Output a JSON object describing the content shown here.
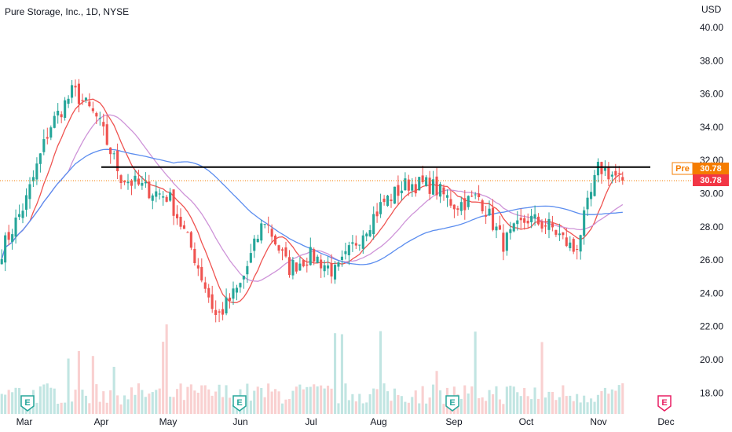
{
  "header": {
    "title": "Pure Storage, Inc., 1D, NYSE",
    "currency": "USD"
  },
  "price_tags": {
    "pre_label": "Pre",
    "pre_value": "30.78",
    "last_value": "30.78",
    "pre_color": "#f57c00",
    "last_color": "#f23645"
  },
  "chart_data": {
    "type": "candlestick",
    "title": "Pure Storage, Inc., 1D, NYSE",
    "y_axis_label": "USD",
    "y_ticks": [
      "40.00",
      "38.00",
      "36.00",
      "34.00",
      "32.00",
      "30.00",
      "28.00",
      "26.00",
      "24.00",
      "22.00",
      "20.00",
      "18.00"
    ],
    "ylim": [
      17.5,
      41
    ],
    "x_ticks": [
      "Mar",
      "Apr",
      "May",
      "Jun",
      "Jul",
      "Aug",
      "Sep",
      "Oct",
      "Nov",
      "Dec"
    ],
    "close_series": [
      {
        "date": "Mar",
        "close": 26.6
      },
      {
        "date": "Mar mid",
        "close": 29.5
      },
      {
        "date": "Mar late",
        "close": 34.0
      },
      {
        "date": "Apr",
        "close": 36.2
      },
      {
        "date": "Apr early",
        "close": 34.5
      },
      {
        "date": "Apr mid",
        "close": 31.0
      },
      {
        "date": "Apr late",
        "close": 30.3
      },
      {
        "date": "May",
        "close": 29.8
      },
      {
        "date": "May mid",
        "close": 26.5
      },
      {
        "date": "May late",
        "close": 22.5
      },
      {
        "date": "Jun",
        "close": 24.5
      },
      {
        "date": "Jun mid",
        "close": 28.5
      },
      {
        "date": "Jun late",
        "close": 25.5
      },
      {
        "date": "Jul",
        "close": 26.3
      },
      {
        "date": "Jul mid",
        "close": 25.2
      },
      {
        "date": "Jul late",
        "close": 27.5
      },
      {
        "date": "Aug",
        "close": 29.5
      },
      {
        "date": "Aug mid",
        "close": 30.6
      },
      {
        "date": "Aug late",
        "close": 30.5
      },
      {
        "date": "Sep",
        "close": 29.3
      },
      {
        "date": "Sep mid",
        "close": 29.8
      },
      {
        "date": "Sep late",
        "close": 27.0
      },
      {
        "date": "Oct",
        "close": 28.5
      },
      {
        "date": "Oct mid",
        "close": 28.0
      },
      {
        "date": "Oct late",
        "close": 26.5
      },
      {
        "date": "Nov",
        "close": 31.6
      },
      {
        "date": "Nov mid",
        "close": 30.78
      }
    ],
    "moving_averages": [
      {
        "color": "#ef5350"
      },
      {
        "color": "#ce93d8"
      },
      {
        "color": "#5b8def"
      }
    ],
    "resistance_line": {
      "price": 31.6,
      "from": "Mar late",
      "to": "Nov mid"
    },
    "dotted_line": {
      "price": 30.78
    },
    "earnings_markers": [
      {
        "date": "Mar",
        "label": "E"
      },
      {
        "date": "Jun",
        "label": "E"
      },
      {
        "date": "Sep",
        "label": "E"
      },
      {
        "date": "Dec",
        "label": "E",
        "upcoming": true
      }
    ],
    "colors": {
      "up": "#26a69a",
      "down": "#ef5350"
    },
    "volume": true
  }
}
